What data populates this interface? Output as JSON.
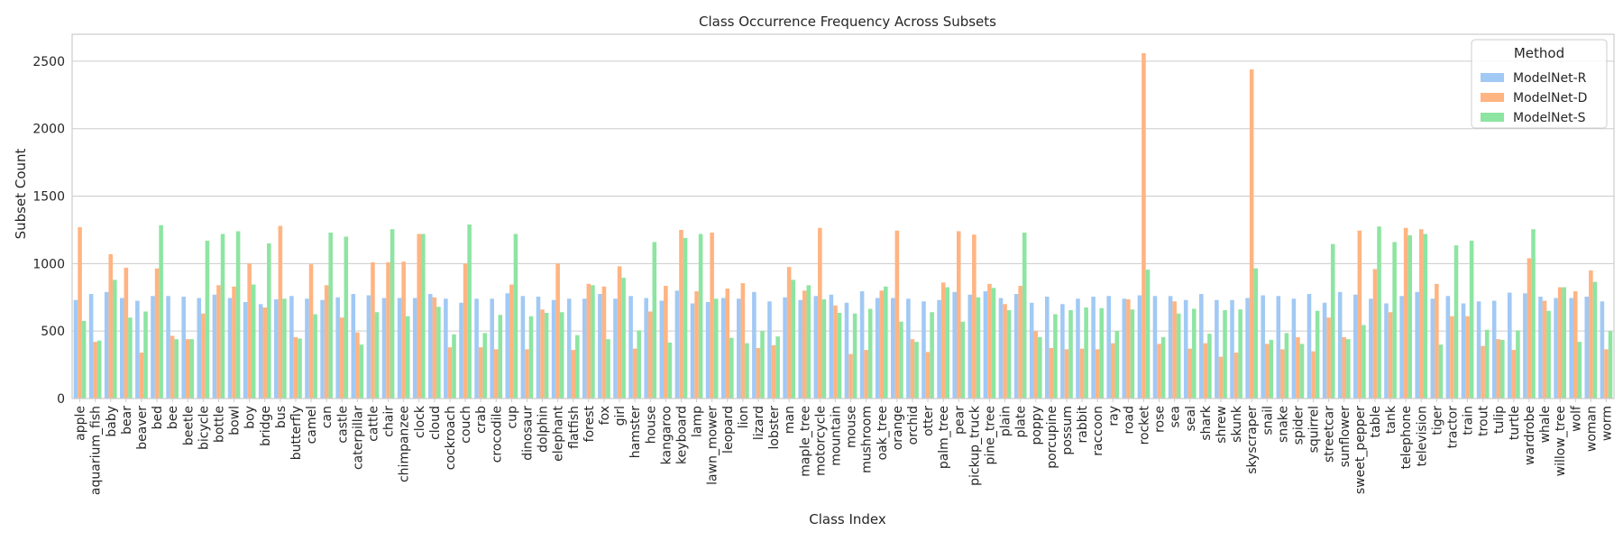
{
  "chart_data": {
    "type": "bar",
    "title": "Class Occurrence Frequency Across Subsets",
    "xlabel": "Class Index",
    "ylabel": "Subset Count",
    "ylim": [
      0,
      2700
    ],
    "yticks": [
      0,
      500,
      1000,
      1500,
      2000,
      2500
    ],
    "grid": true,
    "legend": {
      "title": "Method",
      "placement": "top-right"
    },
    "categories": [
      "apple",
      "aquarium_fish",
      "baby",
      "bear",
      "beaver",
      "bed",
      "bee",
      "beetle",
      "bicycle",
      "bottle",
      "bowl",
      "boy",
      "bridge",
      "bus",
      "butterfly",
      "camel",
      "can",
      "castle",
      "caterpillar",
      "cattle",
      "chair",
      "chimpanzee",
      "clock",
      "cloud",
      "cockroach",
      "couch",
      "crab",
      "crocodile",
      "cup",
      "dinosaur",
      "dolphin",
      "elephant",
      "flatfish",
      "forest",
      "fox",
      "girl",
      "hamster",
      "house",
      "kangaroo",
      "keyboard",
      "lamp",
      "lawn_mower",
      "leopard",
      "lion",
      "lizard",
      "lobster",
      "man",
      "maple_tree",
      "motorcycle",
      "mountain",
      "mouse",
      "mushroom",
      "oak_tree",
      "orange",
      "orchid",
      "otter",
      "palm_tree",
      "pear",
      "pickup_truck",
      "pine_tree",
      "plain",
      "plate",
      "poppy",
      "porcupine",
      "possum",
      "rabbit",
      "raccoon",
      "ray",
      "road",
      "rocket",
      "rose",
      "sea",
      "seal",
      "shark",
      "shrew",
      "skunk",
      "skyscraper",
      "snail",
      "snake",
      "spider",
      "squirrel",
      "streetcar",
      "sunflower",
      "sweet_pepper",
      "table",
      "tank",
      "telephone",
      "television",
      "tiger",
      "tractor",
      "train",
      "trout",
      "tulip",
      "turtle",
      "wardrobe",
      "whale",
      "willow_tree",
      "wolf",
      "woman",
      "worm"
    ],
    "series": [
      {
        "name": "ModelNet-R",
        "color": "#a1c9f4",
        "values": [
          730,
          775,
          790,
          745,
          725,
          760,
          760,
          755,
          745,
          770,
          745,
          715,
          700,
          735,
          760,
          740,
          730,
          750,
          775,
          765,
          745,
          745,
          745,
          775,
          740,
          710,
          740,
          740,
          780,
          760,
          755,
          730,
          740,
          740,
          775,
          740,
          760,
          745,
          725,
          800,
          705,
          715,
          745,
          740,
          790,
          720,
          750,
          730,
          760,
          770,
          710,
          795,
          745,
          745,
          740,
          720,
          730,
          790,
          770,
          795,
          745,
          775,
          710,
          755,
          700,
          740,
          755,
          760,
          740,
          765,
          760,
          760,
          730,
          775,
          730,
          730,
          745,
          765,
          760,
          740,
          775,
          710,
          790,
          770,
          740,
          705,
          760,
          790,
          740,
          760,
          705,
          720,
          725,
          785,
          780,
          755,
          745,
          745,
          755,
          720
        ]
      },
      {
        "name": "ModelNet-D",
        "color": "#ffb482",
        "values": [
          1270,
          420,
          1070,
          970,
          340,
          965,
          465,
          440,
          630,
          840,
          830,
          1000,
          675,
          1280,
          455,
          995,
          840,
          600,
          490,
          1010,
          1010,
          1015,
          1220,
          750,
          380,
          1000,
          380,
          365,
          845,
          365,
          660,
          1000,
          360,
          850,
          830,
          980,
          370,
          645,
          835,
          1250,
          795,
          1230,
          815,
          855,
          375,
          395,
          975,
          800,
          1265,
          690,
          330,
          360,
          800,
          1245,
          440,
          345,
          860,
          1240,
          1215,
          850,
          700,
          835,
          500,
          375,
          365,
          370,
          365,
          410,
          735,
          2560,
          405,
          720,
          370,
          410,
          310,
          340,
          2440,
          405,
          365,
          455,
          350,
          600,
          455,
          1245,
          960,
          640,
          1265,
          1255,
          850,
          610,
          610,
          390,
          440,
          360,
          1040,
          725,
          825,
          795,
          950,
          365
        ]
      },
      {
        "name": "ModelNet-S",
        "color": "#8de5a1",
        "values": [
          575,
          430,
          880,
          600,
          645,
          1285,
          440,
          440,
          1170,
          1220,
          1240,
          845,
          1150,
          740,
          445,
          625,
          1230,
          1200,
          400,
          640,
          1255,
          610,
          1220,
          680,
          475,
          1290,
          485,
          620,
          1220,
          610,
          635,
          640,
          470,
          840,
          440,
          895,
          505,
          1160,
          415,
          1190,
          1220,
          740,
          450,
          410,
          500,
          460,
          880,
          840,
          735,
          635,
          630,
          665,
          830,
          570,
          420,
          640,
          825,
          570,
          750,
          820,
          655,
          1230,
          455,
          625,
          655,
          675,
          670,
          500,
          660,
          955,
          455,
          630,
          665,
          480,
          655,
          660,
          965,
          435,
          485,
          405,
          650,
          1145,
          440,
          545,
          1275,
          1160,
          1210,
          1220,
          400,
          1135,
          1170,
          510,
          435,
          505,
          1255,
          650,
          825,
          420,
          865,
          500
        ]
      }
    ]
  }
}
